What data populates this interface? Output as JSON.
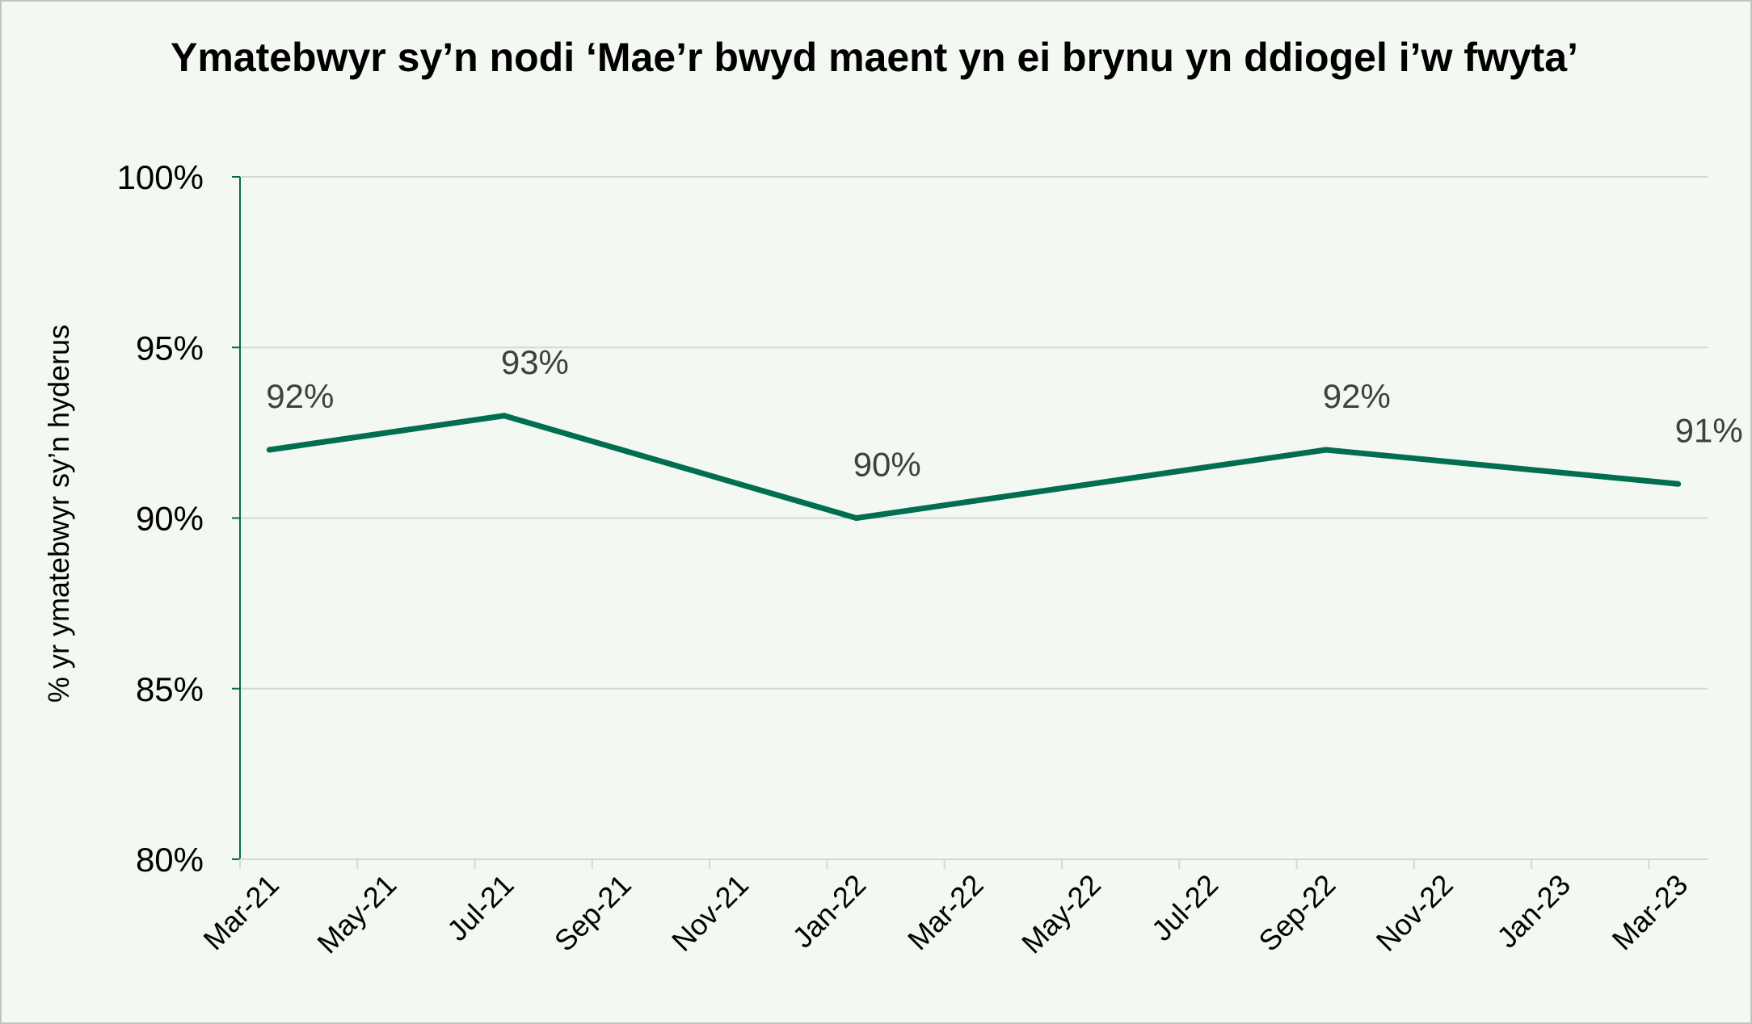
{
  "colors": {
    "line": "#006e4f",
    "axis": "#006e4f",
    "grid": "#d5d9d6",
    "background": "#f3f8f2",
    "label_text": "#404040",
    "tick_text": "#000000"
  },
  "chart_data": {
    "type": "line",
    "title": "Ymatebwyr sy’n nodi ‘Mae’r bwyd maent yn ei brynu yn ddiogel i’w fwyta’",
    "xlabel": "",
    "ylabel": "% yr ymatebwyr sy’n hyderus",
    "ylim": [
      80,
      100
    ],
    "y_ticks": [
      "80%",
      "85%",
      "90%",
      "95%",
      "100%"
    ],
    "x_ticks": [
      "Mar-21",
      "May-21",
      "Jul-21",
      "Sep-21",
      "Nov-21",
      "Jan-22",
      "Mar-22",
      "May-22",
      "Jul-22",
      "Sep-22",
      "Nov-22",
      "Jan-23",
      "Mar-23"
    ],
    "grid": true,
    "legend": "none",
    "series": [
      {
        "points": [
          {
            "x": "Mar-21",
            "y": 92,
            "label": "92%"
          },
          {
            "x": "Jul-21",
            "y": 93,
            "label": "93%"
          },
          {
            "x": "Jan-22",
            "y": 90,
            "label": "90%"
          },
          {
            "x": "Sep-22",
            "y": 92,
            "label": "92%"
          },
          {
            "x": "Mar-23",
            "y": 91,
            "label": "91%"
          }
        ]
      }
    ]
  }
}
